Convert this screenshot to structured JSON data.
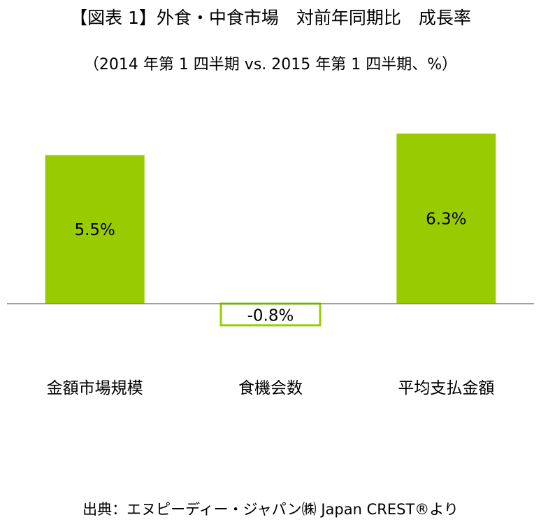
{
  "header": {
    "title": "【図表 1】外食・中食市場　対前年同期比　成長率",
    "subtitle": "（2014 年第 1 四半期 vs. 2015 年第 1 四半期、%）"
  },
  "footer": {
    "source": "出典：エヌピーディー・ジャパン㈱ Japan CREST®より"
  },
  "colors": {
    "bar_fill": "#99cc00",
    "bar_outline": "#99cc00",
    "negative_fill": "#ffffff",
    "axis": "#808080"
  },
  "chart_data": {
    "type": "bar",
    "title": "【図表 1】外食・中食市場　対前年同期比　成長率",
    "subtitle": "（2014 年第 1 四半期 vs. 2015 年第 1 四半期、%）",
    "categories": [
      "金額市場規模",
      "食機会数",
      "平均支払金額"
    ],
    "values": [
      5.5,
      -0.8,
      6.3
    ],
    "value_labels": [
      "5.5%",
      "-0.8%",
      "6.3%"
    ],
    "xlabel": "",
    "ylabel": "",
    "grid": false,
    "legend": "none",
    "negative_style": "outlined"
  }
}
